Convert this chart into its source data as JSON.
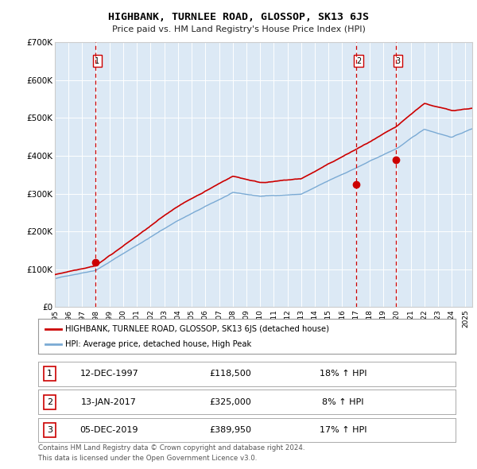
{
  "title": "HIGHBANK, TURNLEE ROAD, GLOSSOP, SK13 6JS",
  "subtitle": "Price paid vs. HM Land Registry's House Price Index (HPI)",
  "ylabel_ticks": [
    "£0",
    "£100K",
    "£200K",
    "£300K",
    "£400K",
    "£500K",
    "£600K",
    "£700K"
  ],
  "ylim": [
    0,
    700000
  ],
  "xlim_start": 1995.0,
  "xlim_end": 2025.5,
  "bg_color": "#dce9f5",
  "grid_color": "#ffffff",
  "sale_color": "#cc0000",
  "hpi_color": "#7aaad4",
  "vline_color": "#cc0000",
  "sales": [
    {
      "year": 1997.95,
      "price": 118500,
      "label": "1"
    },
    {
      "year": 2017.04,
      "price": 325000,
      "label": "2"
    },
    {
      "year": 2019.92,
      "price": 389950,
      "label": "3"
    }
  ],
  "table_rows": [
    {
      "num": "1",
      "date": "12-DEC-1997",
      "price": "£118,500",
      "pct": "18% ↑ HPI"
    },
    {
      "num": "2",
      "date": "13-JAN-2017",
      "price": "£325,000",
      "pct": "8% ↑ HPI"
    },
    {
      "num": "3",
      "date": "05-DEC-2019",
      "price": "£389,950",
      "pct": "17% ↑ HPI"
    }
  ],
  "legend_entries": [
    "HIGHBANK, TURNLEE ROAD, GLOSSOP, SK13 6JS (detached house)",
    "HPI: Average price, detached house, High Peak"
  ],
  "footer": [
    "Contains HM Land Registry data © Crown copyright and database right 2024.",
    "This data is licensed under the Open Government Licence v3.0."
  ],
  "xtick_years": [
    1995,
    1996,
    1997,
    1998,
    1999,
    2000,
    2001,
    2002,
    2003,
    2004,
    2005,
    2006,
    2007,
    2008,
    2009,
    2010,
    2011,
    2012,
    2013,
    2014,
    2015,
    2016,
    2017,
    2018,
    2019,
    2020,
    2021,
    2022,
    2023,
    2024,
    2025
  ]
}
